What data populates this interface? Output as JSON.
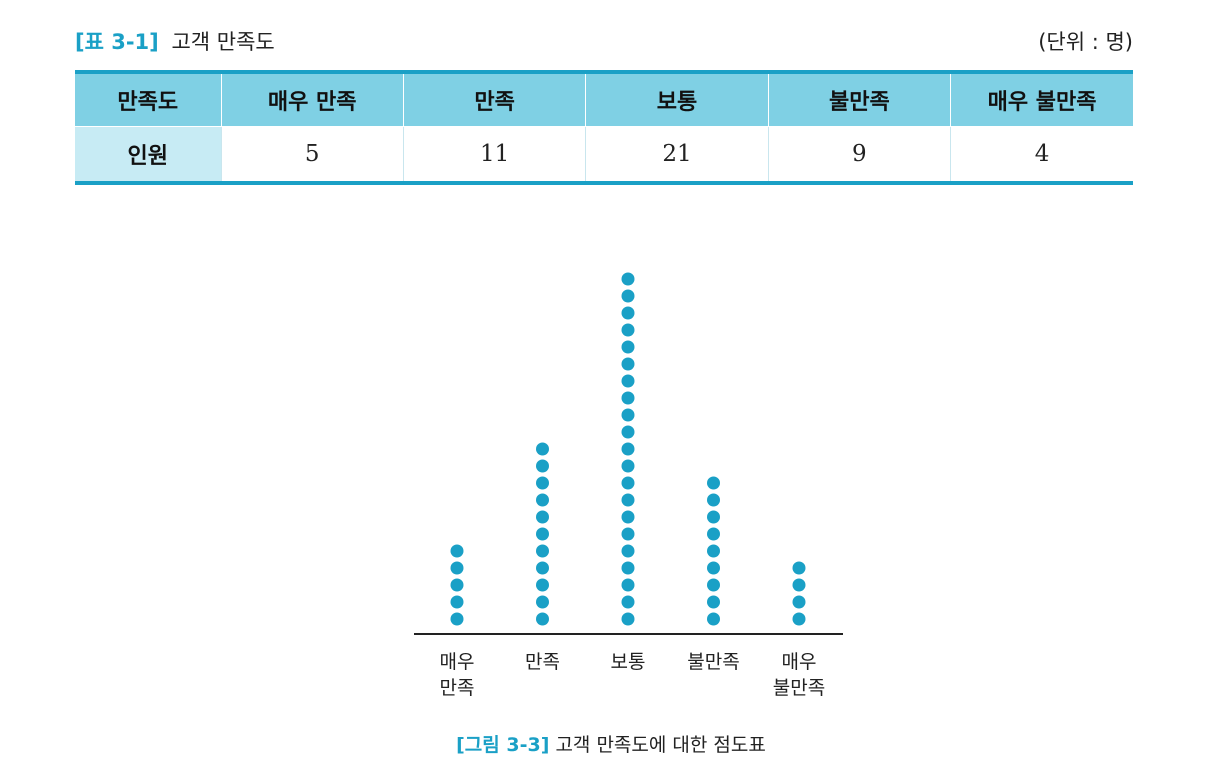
{
  "table_caption": {
    "tag": "[표 3-1]",
    "title": "고객 만족도",
    "unit": "(단위 : 명)"
  },
  "table": {
    "header_label": "만족도",
    "row_label": "인원",
    "columns": [
      "매우 만족",
      "만족",
      "보통",
      "불만족",
      "매우 불만족"
    ],
    "values": [
      "5",
      "11",
      "21",
      "9",
      "4"
    ]
  },
  "figure_caption": {
    "tag": "[그림 3-3]",
    "title": "고객 만족도에 대한 점도표"
  },
  "colors": {
    "accent": "#1aa0c6",
    "header_bg": "#7fd0e4",
    "rowhead_bg": "#c7ebf4",
    "dot": "#1aa0c6"
  },
  "chart_data": {
    "type": "dot",
    "categories": [
      "매우\n만족",
      "만족",
      "보통",
      "불만족",
      "매우\n불만족"
    ],
    "values": [
      5,
      11,
      21,
      9,
      4
    ],
    "title": "",
    "xlabel": "",
    "ylabel": "",
    "grid": false
  }
}
